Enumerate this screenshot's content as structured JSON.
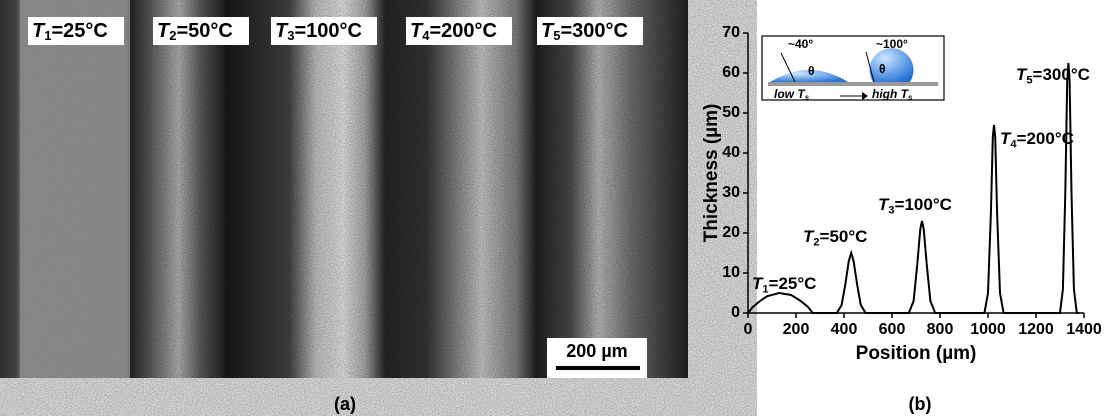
{
  "panel_a": {
    "labels": [
      {
        "symbol": "T",
        "subscript": "1",
        "text": "=25°C"
      },
      {
        "symbol": "T",
        "subscript": "2",
        "text": "=50°C"
      },
      {
        "symbol": "T",
        "subscript": "3",
        "text": "=100°C"
      },
      {
        "symbol": "T",
        "subscript": "4",
        "text": "=200°C"
      },
      {
        "symbol": "T",
        "subscript": "5",
        "text": "=300°C"
      }
    ],
    "scale_bar": "200 µm",
    "caption": "(a)"
  },
  "chart_data": {
    "type": "line",
    "caption": "(b)",
    "x_label": "Position (µm)",
    "y_label": "Thickness (µm)",
    "x": [
      0,
      20,
      50,
      80,
      130,
      180,
      220,
      250,
      270,
      370,
      390,
      405,
      420,
      430,
      440,
      455,
      470,
      490,
      670,
      690,
      705,
      718,
      725,
      732,
      745,
      760,
      780,
      985,
      1000,
      1012,
      1020,
      1025,
      1030,
      1038,
      1050,
      1065,
      1300,
      1312,
      1322,
      1330,
      1335,
      1340,
      1348,
      1358,
      1370,
      1380
    ],
    "values": [
      0,
      1.5,
      3,
      4.2,
      5,
      4.5,
      3,
      1.5,
      0,
      0,
      2,
      7,
      13,
      15,
      13,
      7,
      2,
      0,
      0,
      3,
      12,
      21,
      23,
      21,
      12,
      3,
      0,
      0,
      5,
      25,
      44,
      47,
      44,
      25,
      5,
      0,
      0,
      6,
      30,
      58,
      62.5,
      58,
      30,
      6,
      0,
      0
    ],
    "color": "#000000",
    "xlim": [
      0,
      1400
    ],
    "xticks": [
      0,
      200,
      400,
      600,
      800,
      1000,
      1200,
      1400
    ],
    "ylim": [
      0,
      70
    ],
    "yticks": [
      0,
      10,
      20,
      30,
      40,
      50,
      60,
      70
    ],
    "annotations": [
      {
        "symbol": "T",
        "subscript": "1",
        "text": "=25°C"
      },
      {
        "symbol": "T",
        "subscript": "2",
        "text": "=50°C"
      },
      {
        "symbol": "T",
        "subscript": "3",
        "text": "=100°C"
      },
      {
        "symbol": "T",
        "subscript": "4",
        "text": "=200°C"
      },
      {
        "symbol": "T",
        "subscript": "5",
        "text": "=300°C"
      }
    ],
    "inset": {
      "angles": [
        "~40°",
        "~100°"
      ],
      "theta": "θ",
      "low": {
        "text": "low ",
        "symbol": "T",
        "subscript": "s"
      },
      "high": {
        "text": "high ",
        "symbol": "T",
        "subscript": "s"
      }
    }
  }
}
